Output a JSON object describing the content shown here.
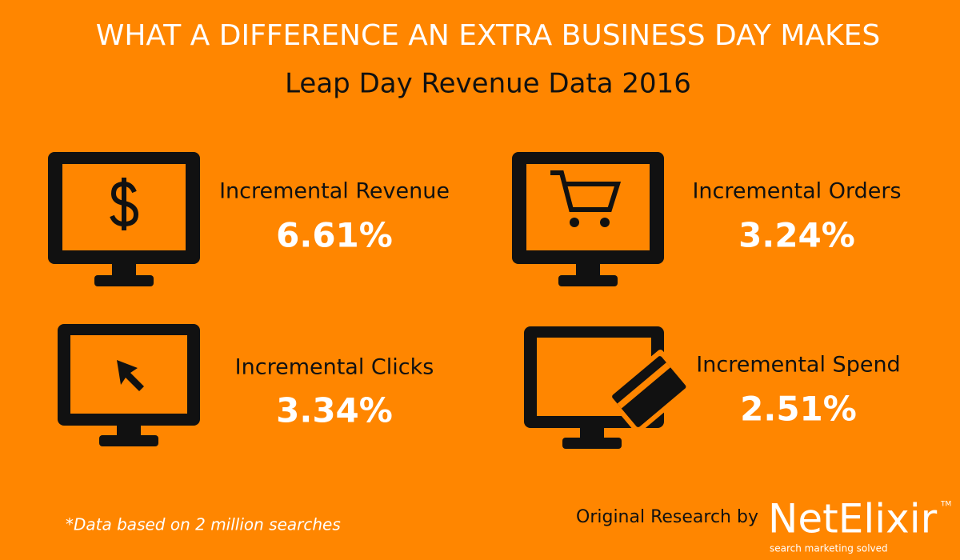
{
  "header": {
    "title": "WHAT A DIFFERENCE AN EXTRA BUSINESS DAY MAKES",
    "subtitle": "Leap Day Revenue Data 2016"
  },
  "metrics": [
    {
      "label": "Incremental Revenue",
      "value": "6.61%"
    },
    {
      "label": "Incremental Orders",
      "value": "3.24%"
    },
    {
      "label": "Incremental Clicks",
      "value": "3.34%"
    },
    {
      "label": "Incremental Spend",
      "value": "2.51%"
    }
  ],
  "footer": {
    "note": "*Data based on 2 million searches",
    "credit": "Original Research by",
    "logo": {
      "name": "NetElixir",
      "trademark": "TM",
      "tagline": "search marketing solved"
    }
  }
}
